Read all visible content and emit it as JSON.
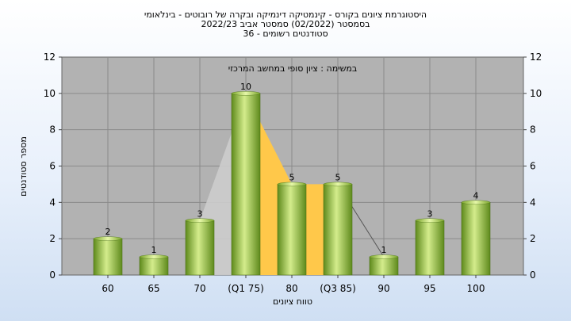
{
  "chart_data": {
    "type": "bar",
    "title_lines": [
      "היסטוגרמת ציונים בקורס - קינמטיקה דינמיקה ובקרה של רובוטים - בינלאומי",
      "בסמסטר  (02/2022)  סמסטר אביב 2022/23",
      "סטודנטים רשומים - 36"
    ],
    "subtitle": "במשימה : ציון סופי במחשב המרכזי",
    "categories": [
      "60",
      "65",
      "70",
      "(Q1 75)",
      "80",
      "(Q3 85)",
      "90",
      "95",
      "100"
    ],
    "values": [
      2,
      1,
      3,
      10,
      5,
      5,
      1,
      3,
      4
    ],
    "data_labels": [
      "2",
      "1",
      "3",
      "10",
      "5",
      "5",
      "1",
      "3",
      "4"
    ],
    "xlabel": "טווח ציונים",
    "ylabel": "מספר סטודנטים",
    "ylim": [
      0,
      12
    ],
    "yticks": [
      "0",
      "2",
      "4",
      "6",
      "8",
      "10",
      "12"
    ],
    "grid": true,
    "bar_color": "#9cc43a",
    "bar_dark": "#5e8a1c",
    "bar_light": "#d4ec8c",
    "plot_bg": "#b2b2b2",
    "iqr_fill": "#ffc84a",
    "whisker_fill": "#cccccc",
    "legend": "none"
  }
}
